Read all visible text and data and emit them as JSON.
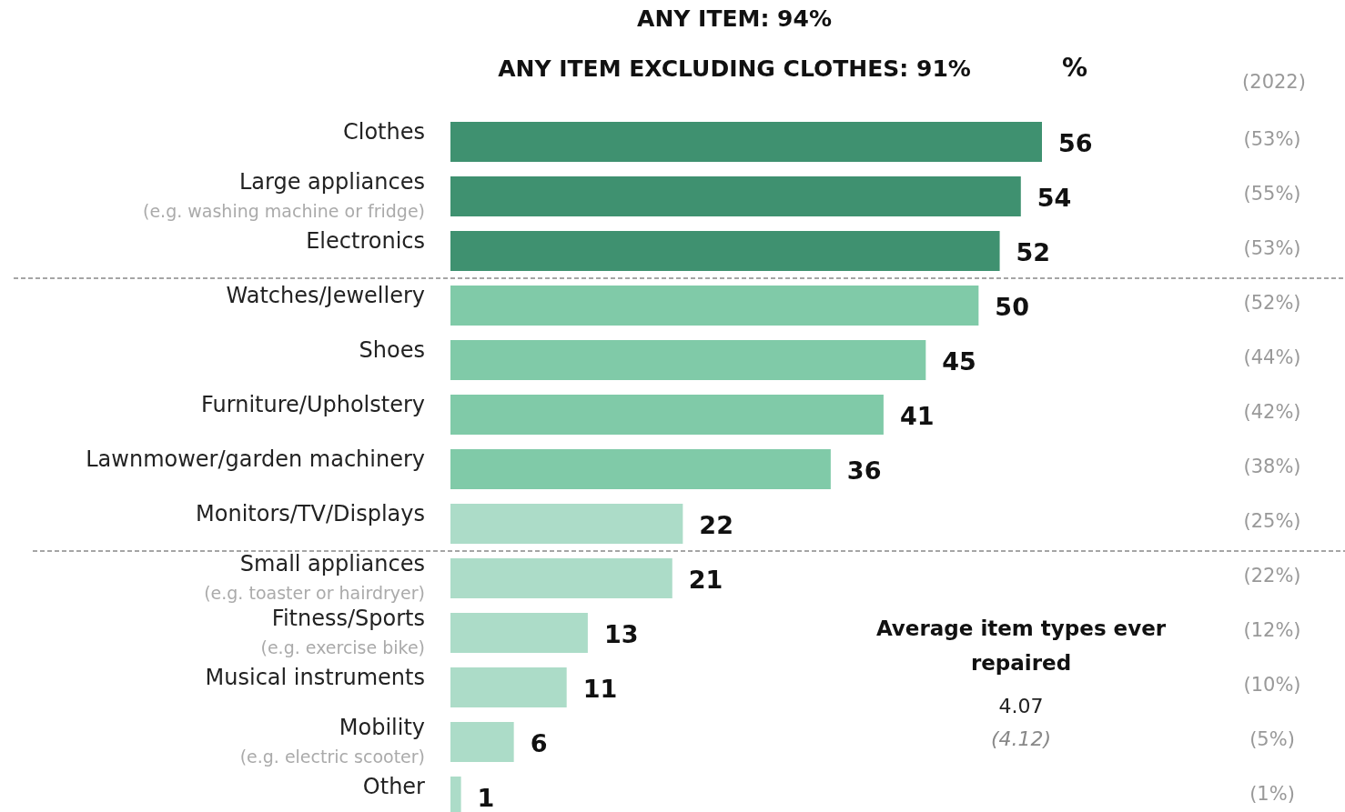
{
  "chart_data": {
    "type": "bar",
    "orientation": "horizontal",
    "title": "ANY ITEM: 94%",
    "subtitle": "ANY ITEM EXCLUDING CLOTHES: 91%",
    "categories": [
      "Clothes",
      "Large appliances\n(e.g. washing machine or fridge)",
      "Electronics",
      "Watches/Jewellery",
      "Shoes",
      "Furniture/Upholstery",
      "Lawnmower/garden machinery",
      "Monitors/TV/Displays",
      "Small appliances\n(e.g. toaster or hairdryer)",
      "Fitness/Sports\n(e.g. exercise bike)",
      "Musical instruments",
      "Mobility\n(e.g. electric scooter)",
      "Other"
    ],
    "values": [
      56,
      54,
      52,
      50,
      45,
      41,
      36,
      22,
      21,
      13,
      11,
      6,
      1
    ],
    "colors": [
      "#3f9170",
      "#3f9170",
      "#3f9170",
      "#80caa8",
      "#80caa8",
      "#80caa8",
      "#80caa8",
      "#acdcc8",
      "#acdcc8",
      "#acdcc8",
      "#acdcc8",
      "#acdcc8",
      "#acdcc8"
    ],
    "data_labels": true,
    "ref_lines": [
      {
        "axis": "y",
        "value": "Watches/Jewellery",
        "color": "#888888",
        "line_style": "dashed"
      },
      {
        "axis": "y",
        "value": "Small appliances\n(e.g. toaster or hairdryer)",
        "color": "#888888",
        "line_style": "dashed"
      }
    ],
    "annotations": [
      "%",
      "(2022)",
      "Average item types ever repaired",
      "4.07",
      "(4.12)",
      "(53%)",
      "(55%)",
      "(53%)",
      "(52%)",
      "(44%)",
      "(42%)",
      "(38%)",
      "(25%)",
      "(22%)",
      "(12%)",
      "(10%)",
      "(5%)",
      "(1%)"
    ]
  }
}
